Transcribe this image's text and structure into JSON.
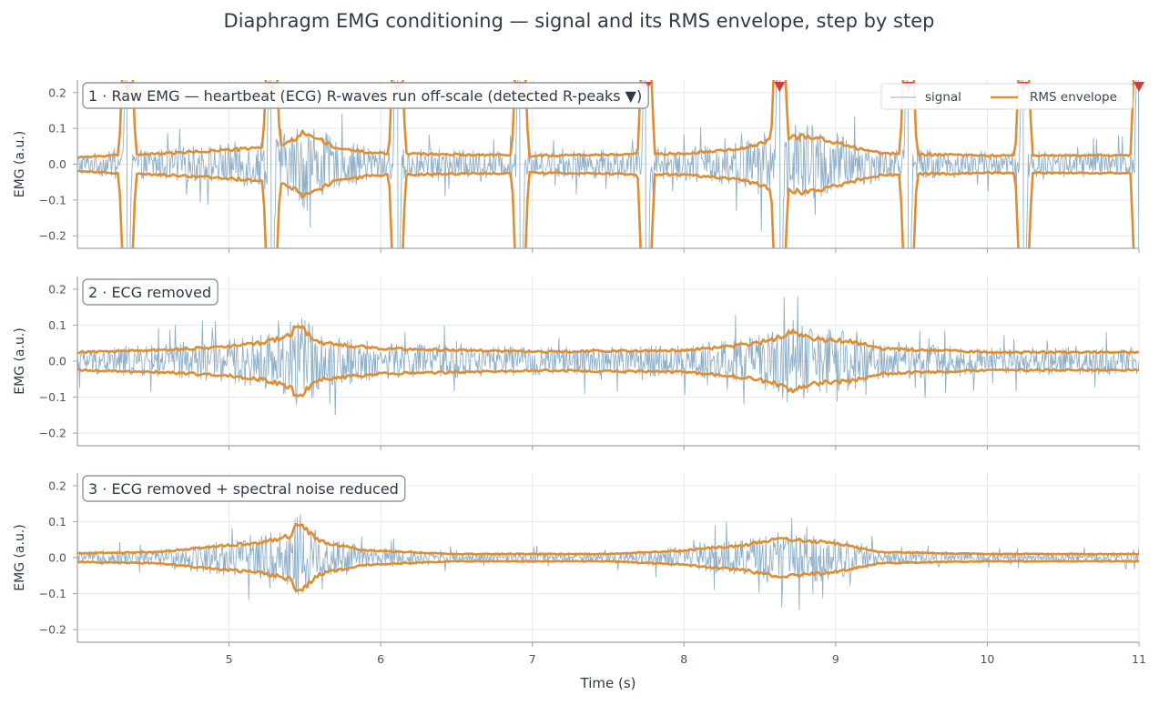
{
  "title": "Diaphragm EMG conditioning — signal and its RMS envelope, step by step",
  "xlabel": "Time (s)",
  "colors": {
    "signal": "#8fb0c9",
    "envelope": "#df8d31",
    "rpeak": "#d13a36",
    "text": "#2e3a4a"
  },
  "legend": {
    "signal": "signal",
    "envelope": "RMS envelope"
  },
  "chart_data": [
    {
      "type": "line",
      "panel": 1,
      "title": "1 · Raw EMG — heartbeat (ECG) R-waves run off-scale (detected R-peaks ▼)",
      "ylabel": "EMG (a.u.)",
      "xlim": [
        4.0,
        11.0
      ],
      "ylim": [
        -0.235,
        0.235
      ],
      "yticks": [
        -0.2,
        -0.1,
        0.0,
        0.1,
        0.2
      ],
      "ytick_labels": [
        "−0.2",
        "−0.1",
        "0.0",
        "0.1",
        "0.2"
      ],
      "xticks": [
        5,
        6,
        7,
        8,
        9,
        10,
        11
      ],
      "grid": true,
      "legend_position": "top-right",
      "series": [
        {
          "name": "signal",
          "noise_amplitude": 0.022
        },
        {
          "name": "RMS envelope",
          "baseline": 0.026
        }
      ],
      "r_peaks_s": [
        4.33,
        5.28,
        6.11,
        6.92,
        7.75,
        8.63,
        9.48,
        10.24,
        11.0
      ],
      "envelope_points": [
        [
          4.0,
          0.02
        ],
        [
          4.6,
          0.03
        ],
        [
          5.2,
          0.045
        ],
        [
          5.4,
          0.06
        ],
        [
          5.5,
          0.09
        ],
        [
          5.7,
          0.045
        ],
        [
          6.0,
          0.03
        ],
        [
          7.0,
          0.024
        ],
        [
          8.0,
          0.03
        ],
        [
          8.4,
          0.045
        ],
        [
          8.6,
          0.07
        ],
        [
          8.8,
          0.08
        ],
        [
          9.0,
          0.06
        ],
        [
          9.3,
          0.03
        ],
        [
          10.0,
          0.024
        ],
        [
          11.0,
          0.025
        ]
      ]
    },
    {
      "type": "line",
      "panel": 2,
      "title": "2 · ECG removed",
      "ylabel": "EMG (a.u.)",
      "xlim": [
        4.0,
        11.0
      ],
      "ylim": [
        -0.235,
        0.235
      ],
      "yticks": [
        -0.2,
        -0.1,
        0.0,
        0.1,
        0.2
      ],
      "ytick_labels": [
        "−0.2",
        "−0.1",
        "0.0",
        "0.1",
        "0.2"
      ],
      "xticks": [
        5,
        6,
        7,
        8,
        9,
        10,
        11
      ],
      "grid": true,
      "series": [
        {
          "name": "signal",
          "noise_amplitude": 0.022
        },
        {
          "name": "RMS envelope",
          "baseline": 0.026
        }
      ],
      "envelope_points": [
        [
          4.0,
          0.025
        ],
        [
          4.5,
          0.03
        ],
        [
          5.0,
          0.04
        ],
        [
          5.2,
          0.05
        ],
        [
          5.4,
          0.07
        ],
        [
          5.45,
          0.1
        ],
        [
          5.6,
          0.05
        ],
        [
          6.0,
          0.035
        ],
        [
          7.0,
          0.026
        ],
        [
          8.0,
          0.03
        ],
        [
          8.4,
          0.045
        ],
        [
          8.6,
          0.06
        ],
        [
          8.7,
          0.08
        ],
        [
          8.9,
          0.06
        ],
        [
          9.1,
          0.055
        ],
        [
          9.3,
          0.035
        ],
        [
          10.0,
          0.025
        ],
        [
          11.0,
          0.025
        ]
      ]
    },
    {
      "type": "line",
      "panel": 3,
      "title": "3 · ECG removed + spectral noise reduced",
      "ylabel": "EMG (a.u.)",
      "xlim": [
        4.0,
        11.0
      ],
      "ylim": [
        -0.235,
        0.235
      ],
      "yticks": [
        -0.2,
        -0.1,
        0.0,
        0.1,
        0.2
      ],
      "ytick_labels": [
        "−0.2",
        "−0.1",
        "0.0",
        "0.1",
        "0.2"
      ],
      "xticks": [
        5,
        6,
        7,
        8,
        9,
        10,
        11
      ],
      "xtick_labels": [
        "5",
        "6",
        "7",
        "8",
        "9",
        "10",
        "11"
      ],
      "grid": true,
      "series": [
        {
          "name": "signal",
          "noise_amplitude": 0.008
        },
        {
          "name": "RMS envelope",
          "baseline": 0.01
        }
      ],
      "envelope_points": [
        [
          4.0,
          0.012
        ],
        [
          4.5,
          0.015
        ],
        [
          5.0,
          0.035
        ],
        [
          5.2,
          0.04
        ],
        [
          5.4,
          0.06
        ],
        [
          5.45,
          0.095
        ],
        [
          5.6,
          0.045
        ],
        [
          5.9,
          0.02
        ],
        [
          6.5,
          0.01
        ],
        [
          7.5,
          0.01
        ],
        [
          8.0,
          0.02
        ],
        [
          8.4,
          0.035
        ],
        [
          8.6,
          0.05
        ],
        [
          8.7,
          0.05
        ],
        [
          9.0,
          0.04
        ],
        [
          9.3,
          0.015
        ],
        [
          10.0,
          0.01
        ],
        [
          11.0,
          0.01
        ]
      ]
    }
  ]
}
